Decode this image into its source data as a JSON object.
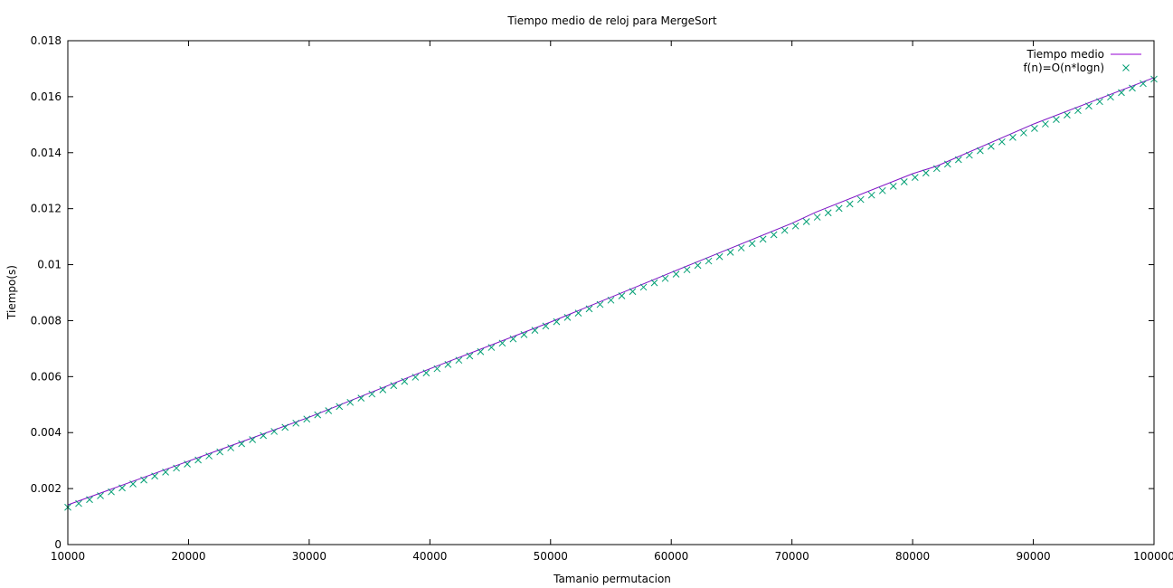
{
  "chart_data": {
    "type": "line",
    "title": "Tiempo medio de reloj para MergeSort",
    "xlabel": "Tamanio permutacion",
    "ylabel": "Tiempo(s)",
    "xlim": [
      10000,
      100000
    ],
    "ylim": [
      0,
      0.018
    ],
    "xticks": [
      10000,
      20000,
      30000,
      40000,
      50000,
      60000,
      70000,
      80000,
      90000,
      100000
    ],
    "xtick_labels": [
      "10000",
      "20000",
      "30000",
      "40000",
      "50000",
      "60000",
      "70000",
      "80000",
      "90000",
      "100000"
    ],
    "yticks": [
      0,
      0.002,
      0.004,
      0.006,
      0.008,
      0.01,
      0.012,
      0.014,
      0.016,
      0.018
    ],
    "ytick_labels": [
      "0",
      "0.002",
      "0.004",
      "0.006",
      "0.008",
      "0.01",
      "0.012",
      "0.014",
      "0.016",
      "0.018"
    ],
    "grid": false,
    "legend_position": "top-right",
    "series": [
      {
        "name": "Tiempo medio",
        "style": "line",
        "color": "#9400d3",
        "x": [
          10000,
          20000,
          30000,
          40000,
          50000,
          60000,
          70000,
          72000,
          80000,
          82000,
          90000,
          100000
        ],
        "y": [
          0.00142,
          0.00298,
          0.00455,
          0.00628,
          0.00795,
          0.00972,
          0.01148,
          0.01188,
          0.01325,
          0.01352,
          0.01502,
          0.01668
        ]
      },
      {
        "name": "f(n)=O(n*logn)",
        "style": "points",
        "color": "#009e73",
        "x": [
          10000,
          10900,
          11800,
          12700,
          13600,
          14500,
          15400,
          16300,
          17200,
          18100,
          19000,
          19900,
          20800,
          21700,
          22600,
          23500,
          24400,
          25300,
          26200,
          27100,
          28000,
          28900,
          29800,
          30700,
          31600,
          32500,
          33400,
          34300,
          35200,
          36100,
          37000,
          37900,
          38800,
          39700,
          40600,
          41500,
          42400,
          43300,
          44200,
          45100,
          46000,
          46900,
          47800,
          48700,
          49600,
          50500,
          51400,
          52300,
          53200,
          54100,
          55000,
          55900,
          56800,
          57700,
          58600,
          59500,
          60400,
          61300,
          62200,
          63100,
          64000,
          64900,
          65800,
          66700,
          67600,
          68500,
          69400,
          70300,
          71200,
          72100,
          73000,
          73900,
          74800,
          75700,
          76600,
          77500,
          78400,
          79300,
          80200,
          81100,
          82000,
          82900,
          83800,
          84700,
          85600,
          86500,
          87400,
          88300,
          89200,
          90100,
          91000,
          91900,
          92800,
          93700,
          94600,
          95500,
          96400,
          97300,
          98200,
          99100,
          100000
        ],
        "y": [
          0.001333,
          0.001469,
          0.001607,
          0.001745,
          0.001884,
          0.002024,
          0.002164,
          0.002306,
          0.002448,
          0.00259,
          0.002733,
          0.002877,
          0.003021,
          0.003165,
          0.00331,
          0.003456,
          0.003602,
          0.003748,
          0.003895,
          0.004042,
          0.004189,
          0.004337,
          0.004485,
          0.004633,
          0.004782,
          0.004931,
          0.00508,
          0.00523,
          0.005379,
          0.005529,
          0.00568,
          0.00583,
          0.005981,
          0.006132,
          0.006283,
          0.006435,
          0.006587,
          0.006739,
          0.006891,
          0.007043,
          0.007196,
          0.007348,
          0.007501,
          0.007655,
          0.007808,
          0.007962,
          0.008115,
          0.008269,
          0.008423,
          0.008578,
          0.008732,
          0.008887,
          0.009041,
          0.009196,
          0.009351,
          0.009507,
          0.009662,
          0.009818,
          0.009973,
          0.010129,
          0.010285,
          0.010441,
          0.010598,
          0.010754,
          0.010911,
          0.011067,
          0.011224,
          0.011381,
          0.011538,
          0.011696,
          0.011853,
          0.01201,
          0.012168,
          0.012326,
          0.012484,
          0.012642,
          0.0128,
          0.012958,
          0.013116,
          0.013275,
          0.013433,
          0.013592,
          0.013751,
          0.01391,
          0.014069,
          0.014228,
          0.014387,
          0.014547,
          0.014706,
          0.014866,
          0.015025,
          0.015185,
          0.015345,
          0.015505,
          0.015665,
          0.015825,
          0.015986,
          0.016146,
          0.016307,
          0.016467,
          0.016628
        ]
      }
    ]
  }
}
